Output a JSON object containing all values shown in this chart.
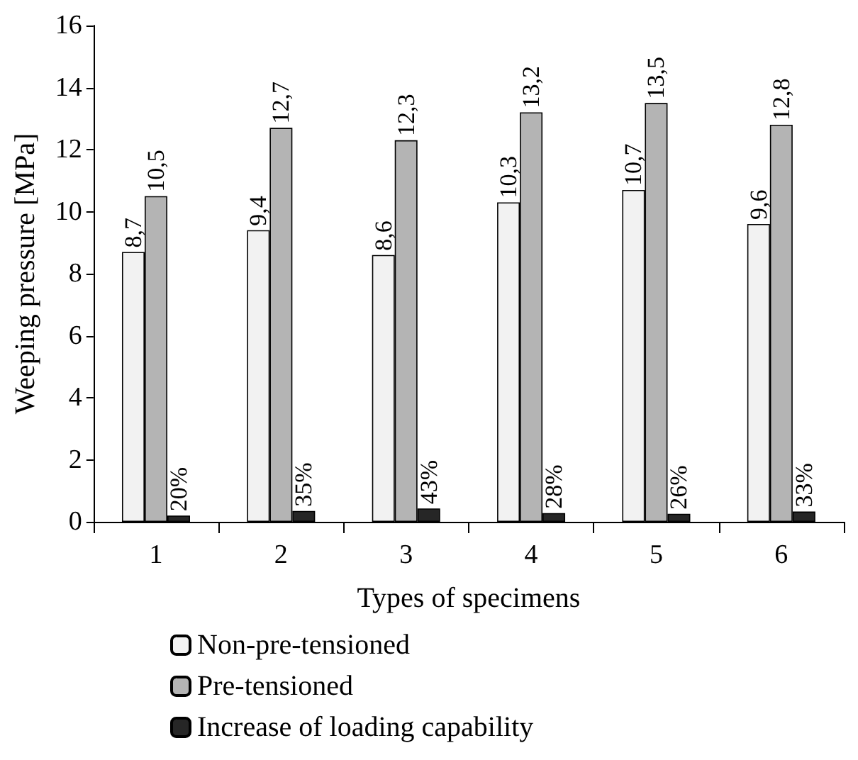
{
  "chart_data": {
    "type": "bar",
    "xlabel": "Types of specimens",
    "ylabel": "Weeping pressure [MPa]",
    "categories": [
      "1",
      "2",
      "3",
      "4",
      "5",
      "6"
    ],
    "series": [
      {
        "name": "Non-pre-tensioned",
        "color": "#f2f2f2",
        "values": [
          8.7,
          9.4,
          8.6,
          10.3,
          10.7,
          9.6
        ],
        "value_labels": [
          "8,7",
          "9,4",
          "8,6",
          "10,3",
          "10,7",
          "9,6"
        ]
      },
      {
        "name": "Pre-tensioned",
        "color": "#b4b4b4",
        "values": [
          10.5,
          12.7,
          12.3,
          13.2,
          13.5,
          12.8
        ],
        "value_labels": [
          "10,5",
          "12,7",
          "12,3",
          "13,2",
          "13,5",
          "12,8"
        ]
      },
      {
        "name": "Increase of loading capability",
        "color": "#262626",
        "values": [
          0.2,
          0.35,
          0.43,
          0.28,
          0.26,
          0.33
        ],
        "value_labels": [
          "20%",
          "35%",
          "43%",
          "28%",
          "26%",
          "33%"
        ]
      }
    ],
    "ylim": [
      0,
      16
    ],
    "yticks": [
      0,
      2,
      4,
      6,
      8,
      10,
      12,
      14,
      16
    ],
    "grid": false,
    "legend": "bottom"
  }
}
